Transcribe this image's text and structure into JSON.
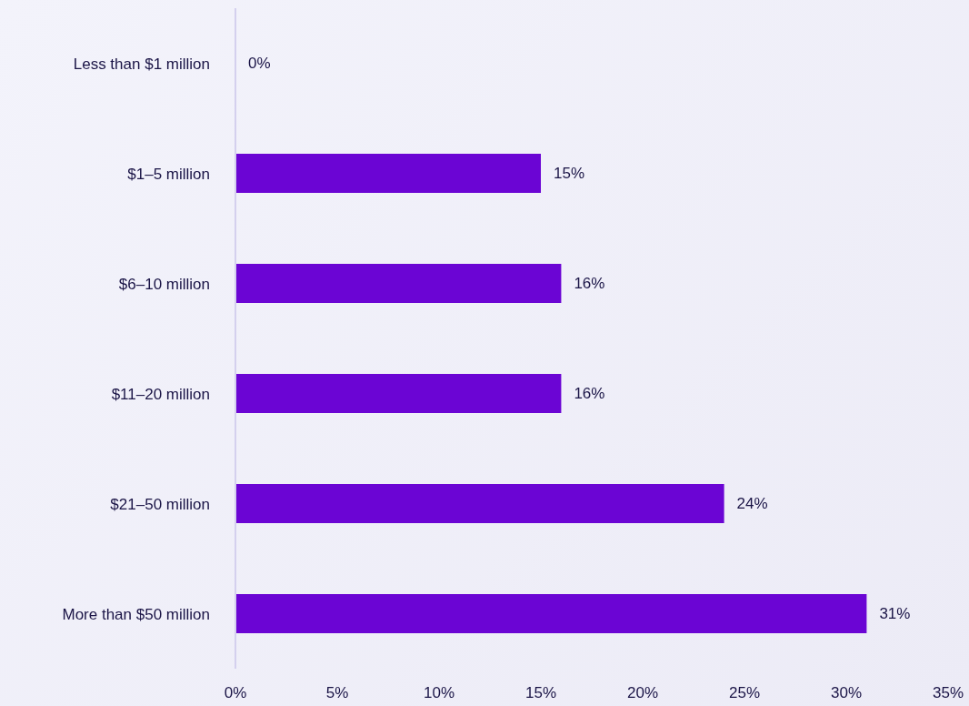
{
  "chart_data": {
    "type": "bar",
    "orientation": "horizontal",
    "categories": [
      "Less than $1 million",
      "$1–5 million",
      "$6–10 million",
      "$11–20 million",
      "$21–50 million",
      "More than $50 million"
    ],
    "values": [
      0,
      15,
      16,
      16,
      24,
      31
    ],
    "value_labels": [
      "0%",
      "15%",
      "16%",
      "16%",
      "24%",
      "31%"
    ],
    "color": "#6b05d4",
    "xlim": [
      0,
      35
    ],
    "xticks": [
      {
        "value": 0,
        "label": "0%"
      },
      {
        "value": 5,
        "label": "5%"
      },
      {
        "value": 10,
        "label": "10%"
      },
      {
        "value": 15,
        "label": "15%"
      },
      {
        "value": 20,
        "label": "20%"
      },
      {
        "value": 25,
        "label": "25%"
      },
      {
        "value": 30,
        "label": "30%"
      },
      {
        "value": 35,
        "label": "35%"
      }
    ]
  }
}
